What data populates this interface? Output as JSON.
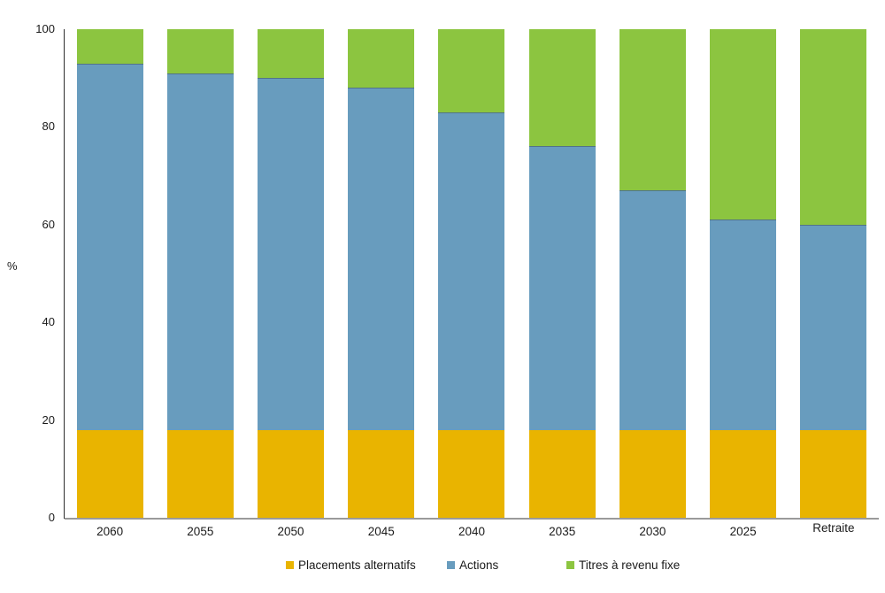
{
  "chart_data": {
    "type": "bar",
    "stacked": true,
    "title": "",
    "xlabel": "",
    "ylabel": "%",
    "ylim": [
      0,
      100
    ],
    "yticks": [
      0,
      20,
      40,
      60,
      80,
      100
    ],
    "grid": false,
    "legend_position": "bottom",
    "categories": [
      "2060",
      "2055",
      "2050",
      "2045",
      "2040",
      "2035",
      "2030",
      "2025",
      "Retraite"
    ],
    "series": [
      {
        "name": "Placements alternatifs",
        "color": "#E9B400",
        "values": [
          18,
          18,
          18,
          18,
          18,
          18,
          18,
          18,
          18
        ]
      },
      {
        "name": "Actions",
        "color": "#689CBE",
        "values": [
          75,
          73,
          72,
          70,
          65,
          58,
          49,
          43,
          42
        ]
      },
      {
        "name": "Titres à revenu fixe",
        "color": "#8CC540",
        "values": [
          7,
          9,
          10,
          12,
          17,
          24,
          33,
          39,
          40
        ]
      }
    ]
  }
}
